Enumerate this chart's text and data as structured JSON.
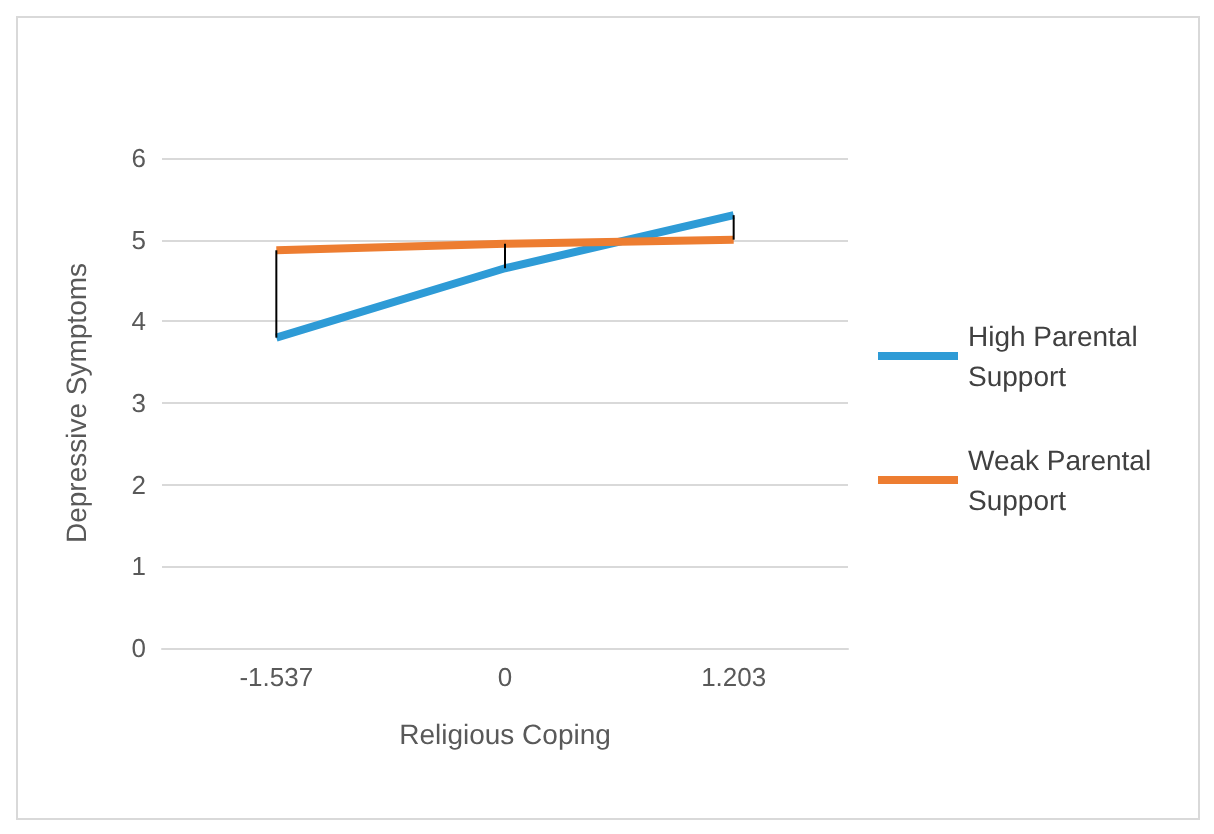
{
  "chart_data": {
    "type": "line",
    "xlabel": "Religious Coping",
    "ylabel": "Depressive Symptoms",
    "categories": [
      "-1.537",
      "0",
      "1.203"
    ],
    "series": [
      {
        "name": "High Parental Support",
        "color": "#2e9bd6",
        "values": [
          3.8,
          4.65,
          5.3
        ]
      },
      {
        "name": "Weak Parental Support",
        "color": "#ed7d31",
        "values": [
          4.87,
          4.95,
          5.0
        ],
        "errors": [
          [
            3.8,
            4.87
          ],
          [
            4.65,
            4.95
          ],
          [
            5.0,
            5.3
          ]
        ]
      }
    ],
    "ylim": [
      0,
      6
    ],
    "yticks": [
      0,
      1,
      2,
      3,
      4,
      5,
      6
    ],
    "grid": "y",
    "legend": "right",
    "marker": "none",
    "line_style": "solid"
  }
}
